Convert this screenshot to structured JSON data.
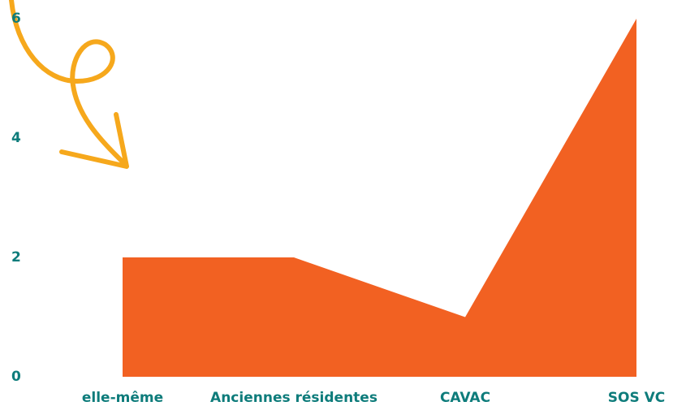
{
  "chart_data": {
    "type": "area",
    "categories": [
      "elle-même",
      "Anciennes résidentes",
      "CAVAC",
      "SOS VC"
    ],
    "values": [
      2,
      2,
      1,
      6
    ],
    "color": "#f26122",
    "ylim": [
      0,
      6
    ],
    "yticks": [
      0,
      2,
      4,
      6
    ],
    "grid": false
  }
}
